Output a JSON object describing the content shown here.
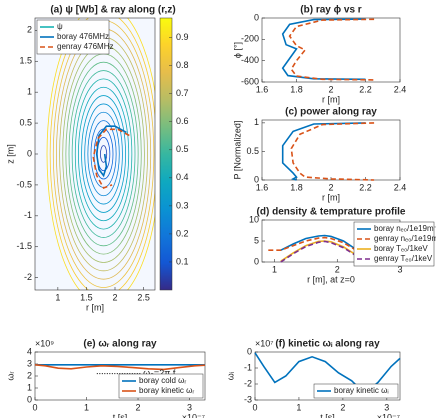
{
  "chart_data": [
    {
      "type": "contour",
      "title": "(a) ψ [Wb] & ray along (r,z)",
      "xlabel": "r [m]",
      "ylabel": "z [m]",
      "xlim": [
        0.6,
        2.7
      ],
      "ylim": [
        -2.2,
        2.2
      ],
      "xticks": [
        1,
        1.5,
        2,
        2.5
      ],
      "yticks": [
        -2,
        -1.5,
        -1,
        -0.5,
        0,
        0.5,
        1,
        1.5,
        2
      ],
      "levels": [
        0.05,
        0.1,
        0.15,
        0.2,
        0.25,
        0.3,
        0.35,
        0.4,
        0.45,
        0.5,
        0.55,
        0.6,
        0.65,
        0.7,
        0.75,
        0.8,
        0.85,
        0.9
      ],
      "clim": [
        0,
        0.97
      ],
      "cticks": [
        0.1,
        0.2,
        0.3,
        0.4,
        0.5,
        0.6,
        0.7,
        0.8,
        0.9
      ],
      "legend": "top-left",
      "contour_legend": "ψ",
      "series": [
        {
          "name": "boray 476MHz",
          "color": "#0072bd",
          "line_style": "solid",
          "x": [
            2.2,
            2.0,
            1.85,
            1.72,
            1.68,
            1.72,
            1.8,
            1.85,
            1.82
          ],
          "values": [
            0.35,
            0.45,
            0.45,
            0.3,
            0.0,
            -0.25,
            -0.35,
            -0.2,
            0.0
          ]
        },
        {
          "name": "genray 476MHz",
          "color": "#d95319",
          "line_style": "dashed",
          "x": [
            2.25,
            2.05,
            1.85,
            1.7,
            1.62,
            1.68,
            1.8,
            1.95
          ],
          "values": [
            0.3,
            0.4,
            0.4,
            0.25,
            -0.05,
            -0.35,
            -0.55,
            -0.5
          ]
        }
      ]
    },
    {
      "type": "line",
      "title": "(b) ray ϕ vs r",
      "xlabel": "r [m]",
      "ylabel": "ϕ [°]",
      "xlim": [
        1.6,
        2.4
      ],
      "ylim": [
        -600,
        0
      ],
      "xticks": [
        1.6,
        1.8,
        2,
        2.2,
        2.4
      ],
      "yticks": [
        -600,
        -400,
        -200,
        0
      ],
      "series": [
        {
          "name": "boray",
          "color": "#0072bd",
          "line_style": "solid",
          "x": [
            2.2,
            1.9,
            1.76,
            1.72,
            1.74,
            1.8,
            1.76,
            1.72,
            1.75,
            1.9,
            2.2
          ],
          "values": [
            -10,
            -15,
            -60,
            -150,
            -250,
            -290,
            -380,
            -470,
            -540,
            -570,
            -575
          ]
        },
        {
          "name": "genray",
          "color": "#d95319",
          "line_style": "dashed",
          "x": [
            2.25,
            1.95,
            1.8,
            1.76,
            1.8,
            1.85,
            1.8,
            1.77,
            1.8,
            1.95,
            2.25
          ],
          "values": [
            -12,
            -20,
            -80,
            -170,
            -260,
            -300,
            -400,
            -480,
            -545,
            -575,
            -580
          ]
        }
      ]
    },
    {
      "type": "line",
      "title": "(c) power along ray",
      "xlabel": "r [m]",
      "ylabel": "P [Normalized]",
      "xlim": [
        1.6,
        2.4
      ],
      "ylim": [
        0,
        1.05
      ],
      "xticks": [
        1.6,
        1.8,
        2,
        2.2,
        2.4
      ],
      "yticks": [
        0,
        0.5,
        1
      ],
      "series": [
        {
          "name": "boray",
          "color": "#0072bd",
          "line_style": "solid",
          "x": [
            2.2,
            1.9,
            1.78,
            1.72,
            1.72,
            1.78,
            1.8,
            1.78,
            1.8
          ],
          "values": [
            1,
            0.98,
            0.85,
            0.6,
            0.3,
            0.12,
            0.05,
            0.02,
            0.0
          ]
        },
        {
          "name": "genray",
          "color": "#d95319",
          "line_style": "dashed",
          "x": [
            2.25,
            1.95,
            1.82,
            1.77,
            1.78,
            1.82,
            1.85,
            2.0,
            2.25
          ],
          "values": [
            1,
            0.97,
            0.8,
            0.55,
            0.3,
            0.12,
            0.05,
            0.02,
            0.0
          ]
        }
      ]
    },
    {
      "type": "line",
      "title": "(d) density & temprature profile",
      "xlabel": "r [m], at z=0",
      "xlim": [
        0.8,
        3
      ],
      "ylim": [
        0,
        10
      ],
      "xticks": [
        1,
        2,
        3
      ],
      "yticks": [
        0,
        5,
        10
      ],
      "legend": "top-right",
      "series": [
        {
          "name": "boray nₑ₀/1e19m⁻³",
          "color": "#0072bd",
          "line_style": "solid",
          "x": [
            0.9,
            1.1,
            1.3,
            1.5,
            1.7,
            1.8,
            1.9,
            2.1,
            2.3,
            2.5
          ],
          "values": [
            null,
            2.8,
            4.3,
            5.6,
            6.2,
            6.3,
            6.1,
            5.0,
            3.0,
            0.8
          ]
        },
        {
          "name": "genray nₑ₀/1e19m⁻³",
          "color": "#d95319",
          "line_style": "dashed",
          "x": [
            0.9,
            1.1,
            1.3,
            1.5,
            1.7,
            1.8,
            1.9,
            2.1,
            2.3,
            2.5
          ],
          "values": [
            2.8,
            2.8,
            3.9,
            5.0,
            5.7,
            5.8,
            5.6,
            4.6,
            2.8,
            0.7
          ]
        },
        {
          "name": "boray Tₑ₀/1keV",
          "color": "#edb120",
          "line_style": "solid",
          "x": [
            0.9,
            1.1,
            1.3,
            1.5,
            1.7,
            1.8,
            1.9,
            2.1,
            2.3,
            2.5
          ],
          "values": [
            null,
            0.2,
            2.2,
            3.9,
            4.9,
            5.0,
            4.8,
            3.6,
            1.7,
            0.2
          ]
        },
        {
          "name": "genray Tₑ₀/1keV",
          "color": "#7e2f8e",
          "line_style": "dashed",
          "x": [
            0.9,
            1.1,
            1.3,
            1.5,
            1.7,
            1.8,
            1.9,
            2.1,
            2.3,
            2.5
          ],
          "values": [
            null,
            0.0,
            2.0,
            3.7,
            4.7,
            4.9,
            4.6,
            3.4,
            1.5,
            0.0
          ]
        }
      ]
    },
    {
      "type": "line",
      "title": "(e) ωᵣ along ray",
      "xlabel": "t [s]",
      "ylabel": "ωᵣ",
      "ymult": "×10⁹",
      "xmult": "×10⁻⁷",
      "xlim": [
        0,
        3.3
      ],
      "ylim": [
        0,
        4
      ],
      "xticks": [
        0,
        1,
        2,
        3
      ],
      "yticks": [
        0,
        1,
        2,
        3,
        4
      ],
      "legend": "bottom-right",
      "annotation": "ω₀=2π f",
      "series": [
        {
          "name": "boray cold ωᵣ",
          "color": "#0072bd",
          "line_style": "solid",
          "x": [
            0,
            3.3
          ],
          "values": [
            2.93,
            2.93
          ]
        },
        {
          "name": "boray kinetic ωᵣ",
          "color": "#d95319",
          "line_style": "solid",
          "x": [
            0,
            0.2,
            0.45,
            0.7,
            1.0,
            1.3,
            1.6,
            1.9,
            2.2,
            2.5,
            2.8,
            3.1,
            3.3
          ],
          "values": [
            2.93,
            2.85,
            2.65,
            2.6,
            2.75,
            2.85,
            2.8,
            2.7,
            2.6,
            2.55,
            2.7,
            2.85,
            2.9
          ]
        }
      ]
    },
    {
      "type": "line",
      "title": "(f) kinetic ωᵢ along ray",
      "xlabel": "t [s]",
      "ylabel": "ωᵢ",
      "ymult": "×10⁷",
      "xmult": "×10⁻⁷",
      "xlim": [
        0,
        3.3
      ],
      "ylim": [
        -3,
        0
      ],
      "xticks": [
        0,
        1,
        2,
        3
      ],
      "yticks": [
        -3,
        -2,
        -1,
        0
      ],
      "legend": "bottom-right",
      "series": [
        {
          "name": "boray kinetic ωᵢ",
          "color": "#0072bd",
          "line_style": "solid",
          "x": [
            0,
            0.2,
            0.45,
            0.7,
            1.0,
            1.3,
            1.6,
            1.9,
            2.2,
            2.5,
            2.8,
            3.1,
            3.3
          ],
          "values": [
            -0.05,
            -0.9,
            -1.9,
            -1.5,
            -0.6,
            -0.3,
            -0.6,
            -1.3,
            -1.8,
            -2.6,
            -1.9,
            -0.9,
            -0.4
          ]
        }
      ]
    }
  ]
}
